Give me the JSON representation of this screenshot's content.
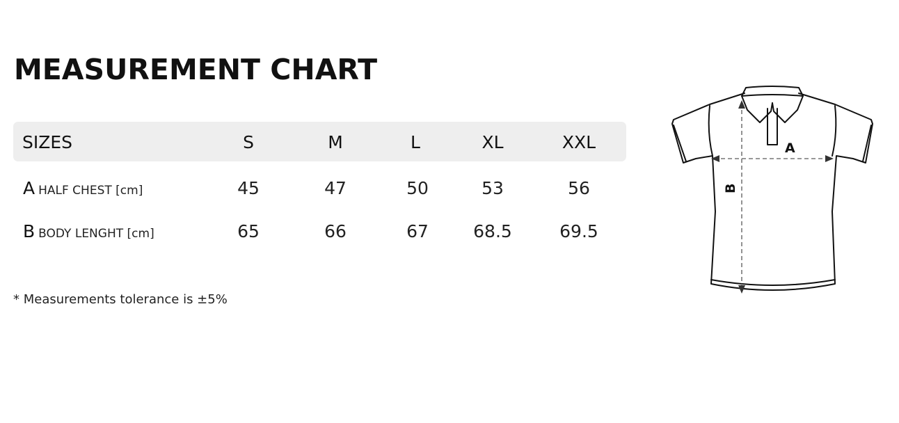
{
  "title": "MEASUREMENT CHART",
  "table": {
    "header_label": "SIZES",
    "sizes": [
      "S",
      "M",
      "L",
      "XL",
      "XXL"
    ],
    "rows": [
      {
        "letter": "A",
        "name": "HALF CHEST [cm]",
        "values": [
          "45",
          "47",
          "50",
          "53",
          "56"
        ]
      },
      {
        "letter": "B",
        "name": "BODY LENGHT [cm]",
        "values": [
          "65",
          "66",
          "67",
          "68.5",
          "69.5"
        ]
      }
    ]
  },
  "note": "* Measurements tolerance is ±5%",
  "diagram": {
    "label_a": "A",
    "label_b": "B",
    "icon": "polo-shirt-icon"
  }
}
